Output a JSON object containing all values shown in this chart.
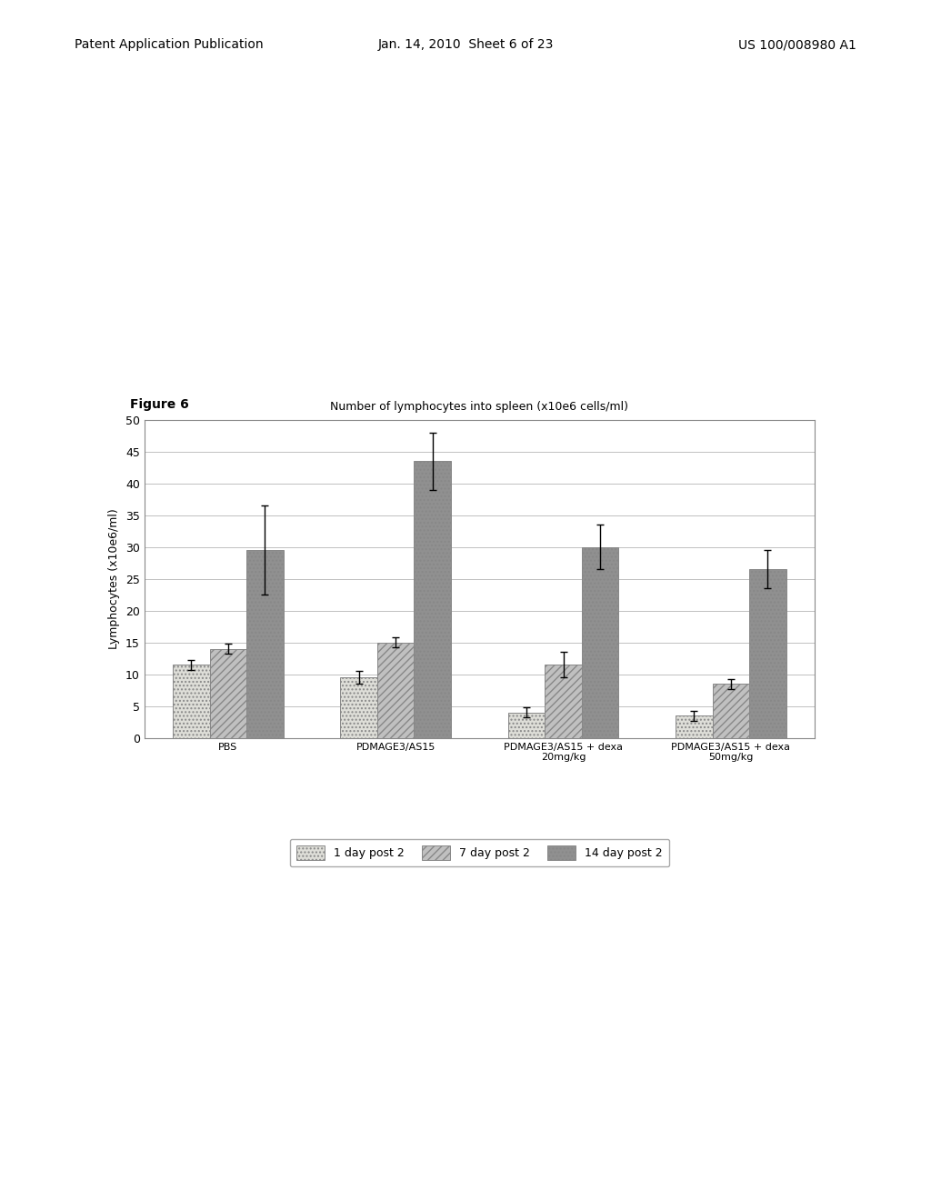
{
  "title": "Number of lymphocytes into spleen (x10e6 cells/ml)",
  "figure_label": "Figure 6",
  "ylabel": "Lymphocytes (x10e6/ml)",
  "ylim": [
    0,
    50
  ],
  "yticks": [
    0,
    5,
    10,
    15,
    20,
    25,
    30,
    35,
    40,
    45,
    50
  ],
  "groups": [
    "PBS",
    "PDMAGE3/AS15",
    "PDMAGE3/AS15 + dexa\n20mg/kg",
    "PDMAGE3/AS15 + dexa\n50mg/kg"
  ],
  "series": [
    {
      "label": "1 day post 2",
      "values": [
        11.5,
        9.5,
        4.0,
        3.5
      ],
      "errors": [
        0.8,
        1.0,
        0.8,
        0.8
      ],
      "hatch": "....",
      "facecolor": "#deded8",
      "edgecolor": "#888888"
    },
    {
      "label": "7 day post 2",
      "values": [
        14.0,
        15.0,
        11.5,
        8.5
      ],
      "errors": [
        0.8,
        0.8,
        2.0,
        0.8
      ],
      "hatch": "////",
      "facecolor": "#c0c0c0",
      "edgecolor": "#888888"
    },
    {
      "label": "14 day post 2",
      "values": [
        29.5,
        43.5,
        30.0,
        26.5
      ],
      "errors": [
        7.0,
        4.5,
        3.5,
        3.0
      ],
      "hatch": "....",
      "facecolor": "#909090",
      "edgecolor": "#888888"
    }
  ],
  "bar_width": 0.22,
  "background_color": "#ffffff",
  "plot_background": "#ffffff",
  "grid_color": "#c0c0c0",
  "title_fontsize": 9,
  "axis_label_fontsize": 9,
  "tick_fontsize": 9,
  "legend_fontsize": 9,
  "figure_label_fontsize": 10,
  "header_left": "Patent Application Publication",
  "header_center": "Jan. 14, 2010  Sheet 6 of 23",
  "header_right": "US 100/008980 A1"
}
